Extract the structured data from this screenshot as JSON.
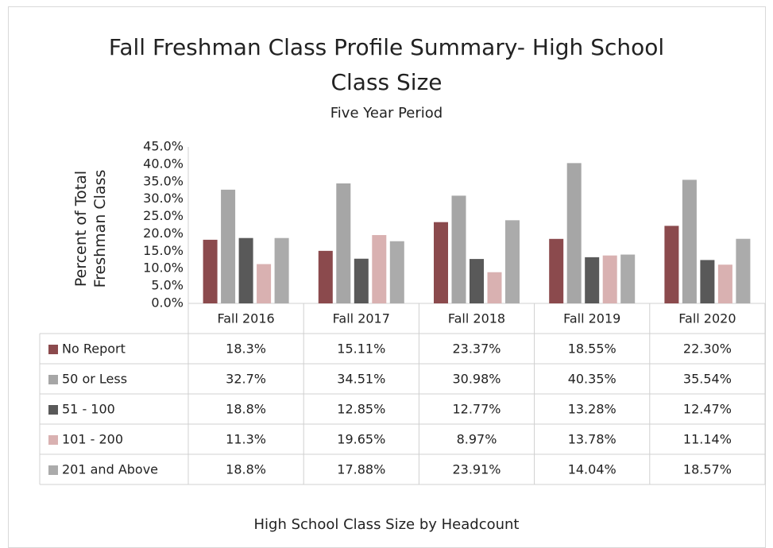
{
  "chart_data": {
    "type": "bar",
    "title": "Fall Freshman Class Profile Summary- High School Class Size",
    "subtitle": "Five Year Period",
    "y_label": "Percent of Total Freshman Class",
    "x_label": "High School Class Size by Headcount",
    "categories": [
      "Fall 2016",
      "Fall 2017",
      "Fall 2018",
      "Fall 2019",
      "Fall 2020"
    ],
    "series": [
      {
        "name": "No Report",
        "color": "#8b4a4d",
        "values": [
          18.3,
          15.11,
          23.37,
          18.55,
          22.3
        ],
        "value_labels": [
          "18.3%",
          "15.11%",
          "23.37%",
          "18.55%",
          "22.30%"
        ]
      },
      {
        "name": "50 or Less",
        "color": "#a6a6a6",
        "values": [
          32.7,
          34.51,
          30.98,
          40.35,
          35.54
        ],
        "value_labels": [
          "32.7%",
          "34.51%",
          "30.98%",
          "40.35%",
          "35.54%"
        ]
      },
      {
        "name": "51 - 100",
        "color": "#595959",
        "values": [
          18.8,
          12.85,
          12.77,
          13.28,
          12.47
        ],
        "value_labels": [
          "18.8%",
          "12.85%",
          "12.77%",
          "13.28%",
          "12.47%"
        ]
      },
      {
        "name": "101 - 200",
        "color": "#d9b1b1",
        "values": [
          11.3,
          19.65,
          8.97,
          13.78,
          11.14
        ],
        "value_labels": [
          "11.3%",
          "19.65%",
          "8.97%",
          "13.78%",
          "11.14%"
        ]
      },
      {
        "name": "201 and Above",
        "color": "#ababab",
        "values": [
          18.8,
          17.88,
          23.91,
          14.04,
          18.57
        ],
        "value_labels": [
          "18.8%",
          "17.88%",
          "23.91%",
          "14.04%",
          "18.57%"
        ]
      }
    ],
    "ylim": [
      0,
      45
    ],
    "yticks": [
      {
        "value": 0,
        "label": "0.0%"
      },
      {
        "value": 5,
        "label": "5.0%"
      },
      {
        "value": 10,
        "label": "10.0%"
      },
      {
        "value": 15,
        "label": "15.0%"
      },
      {
        "value": 20,
        "label": "20.0%"
      },
      {
        "value": 25,
        "label": "25.0%"
      },
      {
        "value": 30,
        "label": "30.0%"
      },
      {
        "value": 35,
        "label": "35.0%"
      },
      {
        "value": 40,
        "label": "40.0%"
      },
      {
        "value": 45,
        "label": "45.0%"
      }
    ],
    "grid": false
  }
}
